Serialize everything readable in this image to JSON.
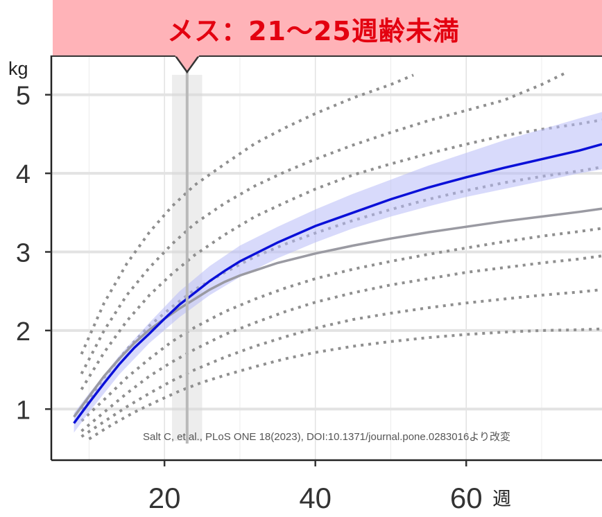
{
  "header": {
    "title": "メス：21〜25週齢未満"
  },
  "source_note": "Salt C, et al., PLoS ONE 18(2023), DOI:10.1371/journal.pone.0283016より改変",
  "chart_data": {
    "type": "line",
    "title": "メス：21〜25週齢未満",
    "xlabel": "週",
    "ylabel": "kg",
    "xlim": [
      5,
      78
    ],
    "ylim": [
      0.35,
      5.5
    ],
    "x_ticks": [
      20,
      40,
      60
    ],
    "x_tick_labels": [
      "20",
      "40",
      "60"
    ],
    "y_ticks": [
      1,
      2,
      3,
      4,
      5
    ],
    "y_tick_labels": [
      "1",
      "2",
      "3",
      "4",
      "5"
    ],
    "grid": "horizontal major, vertical minor",
    "highlight": {
      "band": [
        21,
        25
      ],
      "marker_x": 23
    },
    "colors": {
      "main": "#0a10d8",
      "band": "#b8bcf8",
      "reference": "#9a9aa2",
      "centiles": "#8f8f8f",
      "banner_bg": "#ffb3b8",
      "banner_text": "#e30010",
      "highlight": "#d7d7d7"
    },
    "series": [
      {
        "role": "main",
        "x": [
          8,
          10,
          12,
          14,
          16,
          18,
          20,
          22,
          24,
          26,
          28,
          30,
          35,
          40,
          45,
          50,
          55,
          60,
          65,
          70,
          75,
          78
        ],
        "values": [
          0.82,
          1.08,
          1.33,
          1.57,
          1.78,
          1.96,
          2.15,
          2.33,
          2.48,
          2.63,
          2.76,
          2.88,
          3.12,
          3.33,
          3.5,
          3.67,
          3.82,
          3.95,
          4.07,
          4.18,
          4.29,
          4.37
        ]
      },
      {
        "role": "band-upper",
        "x": [
          8,
          10,
          14,
          18,
          22,
          26,
          30,
          35,
          40,
          45,
          50,
          55,
          60,
          65,
          70,
          75,
          78
        ],
        "values": [
          0.95,
          1.2,
          1.68,
          2.1,
          2.5,
          2.82,
          3.08,
          3.32,
          3.54,
          3.74,
          3.92,
          4.1,
          4.26,
          4.42,
          4.56,
          4.7,
          4.78
        ]
      },
      {
        "role": "band-lower",
        "x": [
          8,
          10,
          14,
          18,
          22,
          26,
          30,
          35,
          40,
          45,
          50,
          55,
          60,
          65,
          70,
          75,
          78
        ],
        "values": [
          0.7,
          0.96,
          1.44,
          1.84,
          2.17,
          2.45,
          2.68,
          2.92,
          3.12,
          3.3,
          3.45,
          3.58,
          3.7,
          3.8,
          3.9,
          4.0,
          4.05
        ]
      },
      {
        "role": "reference",
        "x": [
          8,
          10,
          12,
          14,
          16,
          18,
          20,
          22,
          24,
          26,
          28,
          30,
          35,
          40,
          45,
          50,
          55,
          60,
          65,
          70,
          75,
          78
        ],
        "values": [
          0.9,
          1.16,
          1.42,
          1.64,
          1.84,
          2.01,
          2.15,
          2.28,
          2.4,
          2.52,
          2.62,
          2.7,
          2.86,
          2.98,
          3.08,
          3.17,
          3.25,
          3.32,
          3.39,
          3.45,
          3.51,
          3.55
        ]
      }
    ],
    "centiles": [
      {
        "x": [
          9,
          12,
          15,
          18,
          21,
          24,
          28,
          32,
          36,
          40,
          45,
          50,
          53
        ],
        "values": [
          1.7,
          2.35,
          2.85,
          3.25,
          3.58,
          3.85,
          4.12,
          4.38,
          4.58,
          4.76,
          4.96,
          5.13,
          5.25
        ]
      },
      {
        "x": [
          9,
          12,
          15,
          18,
          21,
          24,
          28,
          32,
          36,
          40,
          45,
          50,
          55,
          60,
          65,
          70,
          73
        ],
        "values": [
          1.45,
          2.0,
          2.45,
          2.8,
          3.1,
          3.36,
          3.62,
          3.84,
          4.02,
          4.18,
          4.36,
          4.52,
          4.67,
          4.8,
          4.93,
          5.13,
          5.27
        ]
      },
      {
        "x": [
          9,
          12,
          15,
          18,
          21,
          24,
          28,
          32,
          36,
          40,
          45,
          50,
          55,
          60,
          65,
          70,
          75,
          78
        ],
        "values": [
          1.25,
          1.72,
          2.12,
          2.45,
          2.72,
          2.96,
          3.22,
          3.45,
          3.63,
          3.8,
          3.98,
          4.12,
          4.25,
          4.37,
          4.48,
          4.56,
          4.63,
          4.68
        ]
      },
      {
        "x": [
          9,
          12,
          15,
          18,
          21,
          24,
          28,
          32,
          36,
          40,
          45,
          50,
          55,
          60,
          65,
          70,
          75,
          78
        ],
        "values": [
          1.0,
          1.4,
          1.76,
          2.06,
          2.3,
          2.52,
          2.74,
          2.94,
          3.1,
          3.24,
          3.4,
          3.54,
          3.67,
          3.78,
          3.88,
          3.96,
          4.03,
          4.08
        ]
      },
      {
        "x": [
          9,
          12,
          15,
          18,
          21,
          24,
          28,
          32,
          36,
          40,
          45,
          50,
          55,
          60,
          65,
          70,
          75,
          78
        ],
        "values": [
          0.85,
          1.12,
          1.4,
          1.64,
          1.86,
          2.04,
          2.24,
          2.4,
          2.54,
          2.66,
          2.78,
          2.88,
          2.97,
          3.05,
          3.13,
          3.2,
          3.26,
          3.3
        ]
      },
      {
        "x": [
          9,
          12,
          15,
          18,
          21,
          24,
          28,
          32,
          36,
          40,
          45,
          50,
          55,
          60,
          65,
          70,
          75,
          78
        ],
        "values": [
          0.72,
          0.96,
          1.2,
          1.42,
          1.6,
          1.76,
          1.95,
          2.1,
          2.24,
          2.36,
          2.48,
          2.58,
          2.66,
          2.74,
          2.8,
          2.86,
          2.91,
          2.95
        ]
      },
      {
        "x": [
          9,
          12,
          15,
          18,
          21,
          24,
          28,
          32,
          36,
          40,
          45,
          50,
          55,
          60,
          65,
          70,
          75,
          78
        ],
        "values": [
          0.65,
          0.84,
          1.03,
          1.2,
          1.36,
          1.5,
          1.66,
          1.8,
          1.92,
          2.03,
          2.14,
          2.22,
          2.29,
          2.35,
          2.4,
          2.45,
          2.49,
          2.52
        ]
      },
      {
        "x": [
          10,
          13,
          16,
          19,
          22,
          25,
          28,
          32,
          36,
          40,
          45,
          50,
          55,
          60,
          65,
          70,
          75,
          78
        ],
        "values": [
          0.62,
          0.8,
          0.96,
          1.1,
          1.23,
          1.34,
          1.43,
          1.54,
          1.64,
          1.72,
          1.8,
          1.86,
          1.91,
          1.95,
          1.98,
          2.0,
          2.01,
          2.02
        ]
      }
    ]
  }
}
